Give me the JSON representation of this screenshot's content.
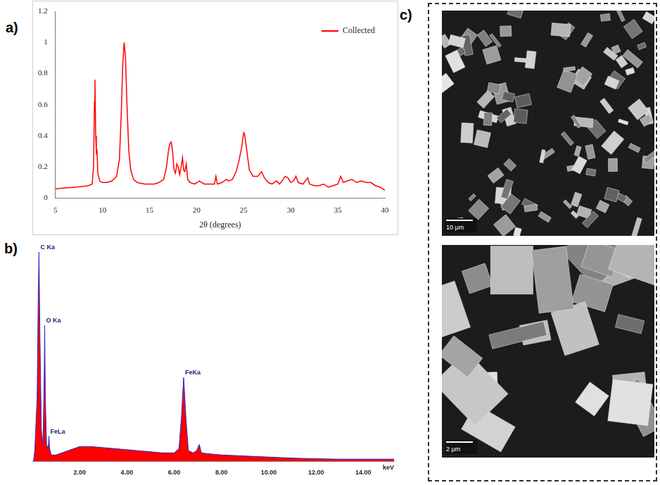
{
  "chart_data": [
    {
      "panel": "a)",
      "type": "line",
      "xlabel": "2θ (degrees)",
      "xlim": [
        5,
        40
      ],
      "xticks": [
        5,
        10,
        15,
        20,
        25,
        30,
        35,
        40
      ],
      "ylim": [
        0,
        1.2
      ],
      "yticks": [
        0,
        0.2,
        0.4,
        0.6,
        0.8,
        1,
        1.2
      ],
      "grid": false,
      "legend": "upper right",
      "x": [
        5,
        6,
        7,
        8,
        8.5,
        8.9,
        9.05,
        9.15,
        9.2,
        9.28,
        9.35,
        9.42,
        9.5,
        9.7,
        10,
        10.5,
        11,
        11.5,
        11.8,
        12,
        12.15,
        12.3,
        12.45,
        12.6,
        12.8,
        13,
        13.3,
        13.7,
        14.5,
        15,
        15.5,
        16,
        16.5,
        16.8,
        17,
        17.15,
        17.3,
        17.45,
        17.6,
        17.75,
        17.9,
        18.05,
        18.2,
        18.35,
        18.5,
        18.62,
        18.75,
        18.9,
        19.05,
        19.3,
        19.8,
        20.3,
        20.8,
        21.3,
        21.9,
        22.05,
        22.2,
        22.7,
        23.15,
        23.4,
        23.8,
        24.2,
        24.5,
        24.8,
        25,
        25.1,
        25.3,
        25.6,
        26,
        26.5,
        26.9,
        27.2,
        27.6,
        28,
        28.5,
        28.8,
        29.2,
        29.4,
        29.7,
        30,
        30.3,
        30.55,
        30.8,
        31.3,
        31.8,
        32,
        32.5,
        33,
        33.5,
        34,
        34.5,
        35,
        35.3,
        35.6,
        36,
        36.5,
        37,
        37.5,
        38,
        38.5,
        39,
        39.5,
        40
      ],
      "series": [
        {
          "name": "Collected",
          "color": "#ff0000",
          "values": [
            0.06,
            0.065,
            0.07,
            0.075,
            0.08,
            0.09,
            0.2,
            0.62,
            0.76,
            0.4,
            0.28,
            0.31,
            0.16,
            0.11,
            0.1,
            0.1,
            0.11,
            0.14,
            0.25,
            0.55,
            0.85,
            1.0,
            0.9,
            0.6,
            0.3,
            0.18,
            0.12,
            0.1,
            0.09,
            0.09,
            0.09,
            0.1,
            0.12,
            0.2,
            0.3,
            0.35,
            0.36,
            0.3,
            0.18,
            0.16,
            0.22,
            0.2,
            0.15,
            0.2,
            0.26,
            0.18,
            0.17,
            0.22,
            0.12,
            0.1,
            0.09,
            0.11,
            0.09,
            0.09,
            0.09,
            0.14,
            0.09,
            0.1,
            0.12,
            0.11,
            0.12,
            0.17,
            0.24,
            0.33,
            0.42,
            0.41,
            0.32,
            0.18,
            0.14,
            0.14,
            0.17,
            0.13,
            0.1,
            0.09,
            0.11,
            0.09,
            0.12,
            0.14,
            0.13,
            0.1,
            0.11,
            0.14,
            0.1,
            0.09,
            0.13,
            0.09,
            0.08,
            0.08,
            0.09,
            0.07,
            0.08,
            0.09,
            0.14,
            0.1,
            0.11,
            0.12,
            0.1,
            0.11,
            0.1,
            0.1,
            0.08,
            0.07,
            0.05
          ]
        }
      ]
    },
    {
      "panel": "b)",
      "type": "area",
      "xlabel": "keV",
      "xlim": [
        0,
        15.3
      ],
      "xticks": [
        {
          "value": 2,
          "label": "2.00"
        },
        {
          "value": 4,
          "label": "4.00"
        },
        {
          "value": 6,
          "label": "6.00"
        },
        {
          "value": 8,
          "label": "8.00"
        },
        {
          "value": 10,
          "label": "10.00"
        },
        {
          "value": 12,
          "label": "12.00"
        },
        {
          "value": 14,
          "label": "14.00"
        }
      ],
      "ylim": [
        0,
        100
      ],
      "tick_labels": "x",
      "grid": false,
      "color": "#ff0000",
      "x": [
        0.05,
        0.1,
        0.2,
        0.25,
        0.28,
        0.32,
        0.38,
        0.45,
        0.5,
        0.52,
        0.55,
        0.6,
        0.67,
        0.7,
        0.73,
        0.8,
        1,
        1.5,
        2,
        2.5,
        3,
        3.5,
        4,
        4.5,
        5,
        5.5,
        6,
        6.2,
        6.3,
        6.4,
        6.5,
        6.6,
        6.8,
        6.95,
        7.06,
        7.15,
        7.5,
        8,
        9,
        10,
        11,
        12,
        13,
        14,
        15,
        15.3
      ],
      "values": [
        0,
        5,
        30,
        80,
        100,
        60,
        15,
        8,
        40,
        65,
        30,
        8,
        6,
        12,
        6,
        3,
        3,
        5,
        7,
        7,
        6.5,
        6,
        5.5,
        5,
        4.5,
        4,
        4,
        6,
        20,
        40,
        20,
        5,
        4,
        5,
        8,
        4,
        3.5,
        3,
        2.5,
        2,
        1.5,
        1.2,
        1,
        1,
        1,
        1
      ],
      "annotations": [
        {
          "text": "C Ka",
          "x": 0.28,
          "y": 100
        },
        {
          "text": "O Ka",
          "x": 0.52,
          "y": 65
        },
        {
          "text": "FeLa",
          "x": 0.7,
          "y": 12
        },
        {
          "text": "FeKa",
          "x": 6.4,
          "y": 40
        }
      ]
    }
  ],
  "image_panel": {
    "panel": "c)",
    "images": [
      {
        "scale_bar": "10 μm"
      },
      {
        "scale_bar": "2 μm"
      }
    ]
  }
}
